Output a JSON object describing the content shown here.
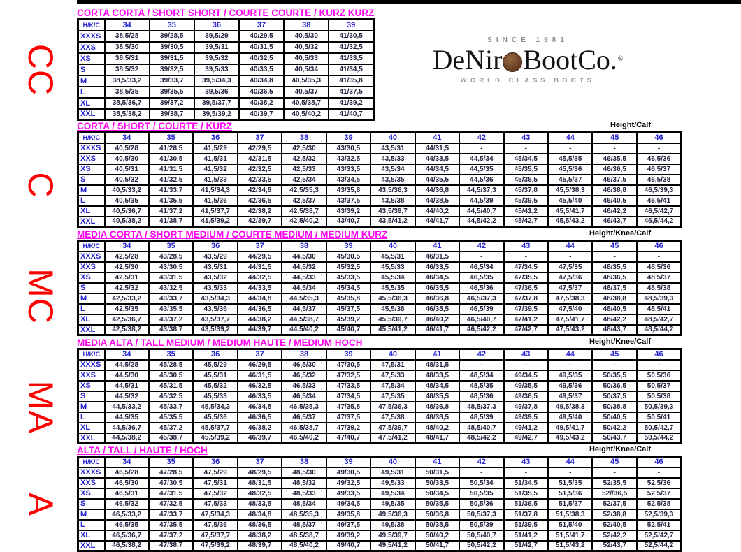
{
  "side_labels": [
    {
      "text": "CC"
    },
    {
      "text": "C"
    },
    {
      "text": "MC"
    },
    {
      "text": "MA"
    },
    {
      "text": "A"
    }
  ],
  "logo": {
    "since": "SINCE 1981",
    "name_left": "DeNir",
    "name_right": "BootCo.",
    "reg": "®",
    "tagline": "WORLD CLASS BOOTS",
    "coin_color": "#6f4426"
  },
  "colors": {
    "title_magenta": "#ff00f2",
    "header_blue": "#2323cf",
    "side_label_red": "#ff0000",
    "cell_text": "#23233f"
  },
  "tables": [
    {
      "title": "CORTA CORTA / SHORT SHORT / COURTE COURTE / KURZ KURZ",
      "note": "",
      "columns": [
        "H/K/C",
        "34",
        "35",
        "36",
        "37",
        "38",
        "39"
      ],
      "rows": [
        {
          "label": "XXXS",
          "values": [
            "38,5/28",
            "39/28,5",
            "39,5/29",
            "40/29,5",
            "40,5/30",
            "41/30,5"
          ]
        },
        {
          "label": "XXS",
          "values": [
            "38,5/30",
            "39/30,5",
            "39,5/31",
            "40/31,5",
            "40,5/32",
            "41/32,5"
          ]
        },
        {
          "label": "XS",
          "values": [
            "38,5/31",
            "39/31,5",
            "39,5/32",
            "40/32,5",
            "40,5/33",
            "41/33,5"
          ]
        },
        {
          "label": "S",
          "values": [
            "38,5/32",
            "39/32,5",
            "39,5/33",
            "40/33,5",
            "40,5/34",
            "41/34,5"
          ]
        },
        {
          "label": "M",
          "values": [
            "38,5/33,2",
            "39/33,7",
            "39,5/34,3",
            "40/34,8",
            "40,5/35,3",
            "41/35,8"
          ]
        },
        {
          "label": "L",
          "values": [
            "38,5/35",
            "39/35,5",
            "39,5/36",
            "40/36,5",
            "40,5/37",
            "41/37,5"
          ]
        },
        {
          "label": "XL",
          "values": [
            "38,5/36,7",
            "39/37,2",
            "39,5/37,7",
            "40/38,2",
            "40,5/38,7",
            "41/39,2"
          ]
        },
        {
          "label": "XXL",
          "values": [
            "38,5/38,2",
            "39/38,7",
            "39,5/39,2",
            "40/39,7",
            "40,5/40,2",
            "41/40,7"
          ]
        }
      ]
    },
    {
      "title": "CORTA / SHORT / COURTE / KURZ",
      "note": "Height/Calf",
      "columns": [
        "H/K/C",
        "34",
        "35",
        "36",
        "37",
        "38",
        "39",
        "40",
        "41",
        "42",
        "43",
        "44",
        "45",
        "46"
      ],
      "rows": [
        {
          "label": "XXXS",
          "values": [
            "40,5/28",
            "41/28,5",
            "41,5/29",
            "42/29,5",
            "42,5/30",
            "43/30,5",
            "43,5/31",
            "44/31,5",
            "-",
            "-",
            "-",
            "-",
            "-"
          ]
        },
        {
          "label": "XXS",
          "values": [
            "40,5/30",
            "41/30,5",
            "41,5/31",
            "42/31,5",
            "42,5/32",
            "43/32,5",
            "43,5/33",
            "44/33,5",
            "44,5/34",
            "45/34,5",
            "45,5/35",
            "46/35,5",
            "46,5/36"
          ]
        },
        {
          "label": "XS",
          "values": [
            "40,5/31",
            "41/31,5",
            "41,5/32",
            "42/32,5",
            "42,5/33",
            "43/33,5",
            "43,5/34",
            "44/34,5",
            "44,5/35",
            "45/35,5",
            "45,5/36",
            "46/36,5",
            "46,5/37"
          ]
        },
        {
          "label": "S",
          "values": [
            "40,5/32",
            "41/32,5",
            "41,5/33",
            "42/33,5",
            "42,5/34",
            "43/34,5",
            "43,5/35",
            "44/35,5",
            "44,5/36",
            "45/36,5",
            "45,5/37",
            "46/37,5",
            "46,5/38"
          ]
        },
        {
          "label": "M",
          "values": [
            "40,5/33,2",
            "41/33,7",
            "41,5/34,3",
            "42/34,8",
            "42,5/35,3",
            "43/35,8",
            "43,5/36,3",
            "44/36,8",
            "44,5/37,3",
            "45/37,8",
            "45,5/38,3",
            "46/38,8",
            "46,5/39,3"
          ]
        },
        {
          "label": "L",
          "values": [
            "40,5/35",
            "41/35,5",
            "41,5/36",
            "42/36,5",
            "42,5/37",
            "43/37,5",
            "43,5/38",
            "44/38,5",
            "44,5/39",
            "45/39,5",
            "45,5/40",
            "46/40,5",
            "46,5/41"
          ]
        },
        {
          "label": "XL",
          "values": [
            "40,5/36,7",
            "41/37,2",
            "41,5/37,7",
            "42/38,2",
            "42,5/38,7",
            "43/39,2",
            "43,5/39,7",
            "44/40,2",
            "44,5/40,7",
            "45/41,2",
            "45,5/41,7",
            "46/42,2",
            "46,5/42,7"
          ]
        },
        {
          "label": "XXL",
          "values": [
            "40,5/38,2",
            "41/38,7",
            "41,5/39,2",
            "42/39,7",
            "42,5/40,2",
            "43/40,7",
            "43,5/41,2",
            "44/41,7",
            "44,5/42,2",
            "45/42,7",
            "45,5/43,2",
            "46/43,7",
            "46,5/44,2"
          ]
        }
      ]
    },
    {
      "title": "MEDIA CORTA / SHORT MEDIUM / COURTE MEDIUM / MEDIUM KURZ",
      "note": "Height/Knee/Calf",
      "columns": [
        "H/K/C",
        "34",
        "35",
        "36",
        "37",
        "38",
        "39",
        "40",
        "41",
        "42",
        "43",
        "44",
        "45",
        "46"
      ],
      "rows": [
        {
          "label": "XXXS",
          "values": [
            "42,5/28",
            "43/28,5",
            "43,5/29",
            "44/29,5",
            "44,5/30",
            "45/30,5",
            "45,5/31",
            "46/31,5",
            "-",
            "-",
            "-",
            "-",
            "-"
          ]
        },
        {
          "label": "XXS",
          "values": [
            "42,5/30",
            "43/30,5",
            "43,5/31",
            "44/31,5",
            "44,5/32",
            "45/32,5",
            "45,5/33",
            "46/33,5",
            "46,5/34",
            "47/34,5",
            "47,5/35",
            "48/35,5",
            "48,5/36"
          ]
        },
        {
          "label": "XS",
          "values": [
            "42,5/31",
            "43/31,5",
            "43,5/32",
            "44/32,5",
            "44,5/33",
            "45/33,5",
            "45,5/34",
            "46/34,5",
            "46,5/35",
            "47/35,5",
            "47,5/36",
            "48/36,5",
            "48,5/37"
          ]
        },
        {
          "label": "S",
          "values": [
            "42,5/32",
            "43/32,5",
            "43,5/33",
            "44/33,5",
            "44,5/34",
            "45/34,5",
            "45,5/35",
            "46/35,5",
            "46,5/36",
            "47/36,5",
            "47,5/37",
            "48/37,5",
            "48,5/38"
          ]
        },
        {
          "label": "M",
          "values": [
            "42,5/33,2",
            "43/33,7",
            "43,5/34,3",
            "44/34,8",
            "44,5/35,3",
            "45/35,8",
            "45,5/36,3",
            "46/36,8",
            "46,5/37,3",
            "47/37,8",
            "47,5/38,3",
            "48/38,8",
            "48,5/39,3"
          ]
        },
        {
          "label": "L",
          "values": [
            "42,5/35",
            "43/35,5",
            "43,5/36",
            "44/36,5",
            "44,5/37",
            "45/37,5",
            "45,5/38",
            "46/38,5",
            "46,5/39",
            "47/39,5",
            "47,5/40",
            "48/40,5",
            "48,5/41"
          ]
        },
        {
          "label": "XL",
          "values": [
            "42,5/36,7",
            "43/37,2",
            "43,5/37,7",
            "44/38,2",
            "44,5/38,7",
            "45/39,2",
            "45,5/39,7",
            "46/40,2",
            "46,5/40,7",
            "47/41,2",
            "47,5/41,7",
            "48/42,2",
            "48,5/42,7"
          ]
        },
        {
          "label": "XXL",
          "values": [
            "42,5/38,2",
            "43/38,7",
            "43,5/39,2",
            "44/39,7",
            "44,5/40,2",
            "45/40,7",
            "45,5/41,2",
            "46/41,7",
            "46,5/42,2",
            "47/42,7",
            "47,5/43,2",
            "48/43,7",
            "48,5/44,2"
          ]
        }
      ]
    },
    {
      "title": "MEDIA ALTA / TALL MEDIUM / MEDIUM HAUTE / MEDIUM HOCH",
      "note": "Height/Knee/Calf",
      "columns": [
        "H/K/C",
        "34",
        "35",
        "36",
        "37",
        "38",
        "39",
        "40",
        "41",
        "42",
        "43",
        "44",
        "45",
        "46"
      ],
      "rows": [
        {
          "label": "XXXS",
          "values": [
            "44,5/28",
            "45/28,5",
            "45,5/29",
            "46/29,5",
            "46,5/30",
            "47/30,5",
            "47,5/31",
            "48/31,5",
            "-",
            "-",
            "-",
            "-",
            "-"
          ]
        },
        {
          "label": "XXS",
          "values": [
            "44,5/30",
            "45/30,5",
            "45,5/31",
            "46/31,5",
            "46,5/32",
            "47/32,5",
            "47,5/33",
            "48/33,5",
            "48,5/34",
            "49/34,5",
            "49,5/35",
            "50/35,5",
            "50,5/36"
          ]
        },
        {
          "label": "XS",
          "values": [
            "44,5/31",
            "45/31,5",
            "45,5/32",
            "46/32,5",
            "46,5/33",
            "47/33,5",
            "47,5/34",
            "48/34,5",
            "48,5/35",
            "49/35,5",
            "49,5/36",
            "50/36,5",
            "50,5/37"
          ]
        },
        {
          "label": "S",
          "values": [
            "44,5/32",
            "45/32,5",
            "45,5/33",
            "46/33,5",
            "46,5/34",
            "47/34,5",
            "47,5/35",
            "48/35,5",
            "48,5/36",
            "49/36,5",
            "49,5/37",
            "50/37,5",
            "50,5/38"
          ]
        },
        {
          "label": "M",
          "values": [
            "44,5/33,2",
            "45/33,7",
            "45,5/34,3",
            "46/34,8",
            "46,5/35,3",
            "47/35,8",
            "47,5/36,3",
            "48/36,8",
            "48,5/37,3",
            "49/37,8",
            "49,5/38,3",
            "50/38,8",
            "50,5/39,3"
          ]
        },
        {
          "label": "L",
          "values": [
            "44,5/35",
            "45/35,5",
            "45,5/36",
            "46/36,5",
            "46,5/37",
            "47/37,5",
            "47,5/38",
            "48/38,5",
            "48,5/39",
            "49/39,5",
            "49,5/40",
            "50/40,5",
            "50,5/41"
          ]
        },
        {
          "label": "XL",
          "values": [
            "44,5/36,7",
            "45/37,2",
            "45,5/37,7",
            "46/38,2",
            "46,5/38,7",
            "47/39,2",
            "47,5/39,7",
            "48/40,2",
            "48,5/40,7",
            "49/41,2",
            "49,5/41,7",
            "50/42,2",
            "50,5/42,7"
          ]
        },
        {
          "label": "XXL",
          "values": [
            "44,5/38,2",
            "45/38,7",
            "45,5/39,2",
            "46/39,7",
            "46,5/40,2",
            "47/40,7",
            "47,5/41,2",
            "48/41,7",
            "48,5/42,2",
            "49/42,7",
            "49,5/43,2",
            "50/43,7",
            "50,5/44,2"
          ]
        }
      ]
    },
    {
      "title": "ALTA / TALL / HAUTE / HOCH",
      "note": "Height/Knee/Calf",
      "columns": [
        "H/K/C",
        "34",
        "35",
        "36",
        "37",
        "38",
        "39",
        "40",
        "41",
        "42",
        "43",
        "44",
        "45",
        "46"
      ],
      "rows": [
        {
          "label": "XXXS",
          "values": [
            "46,5/28",
            "47/28,5",
            "47,5/29",
            "48/29,5",
            "48,5/30",
            "49/30,5",
            "49,5/31",
            "50/31,5",
            "-",
            "-",
            "-",
            "-",
            "-"
          ]
        },
        {
          "label": "XXS",
          "values": [
            "46,5/30",
            "47/30,5",
            "47,5/31",
            "48/31,5",
            "48,5/32",
            "49/32,5",
            "49,5/33",
            "50/33,5",
            "50,5/34",
            "51/34,5",
            "51,5/35",
            "52/35,5",
            "52,5/36"
          ]
        },
        {
          "label": "XS",
          "values": [
            "46,5/31",
            "47/31,5",
            "47,5/32",
            "48/32,5",
            "48,5/33",
            "49/33,5",
            "49,5/34",
            "50/34,5",
            "50,5/35",
            "51/35,5",
            "51,5/36",
            "52//36,5",
            "52,5/37"
          ]
        },
        {
          "label": "S",
          "values": [
            "46,5/32",
            "47/32,5",
            "47,5/33",
            "48/33,5",
            "48,5/34",
            "49/34,5",
            "49,5/35",
            "50/35,5",
            "50,5/36",
            "51/36,5",
            "51,5/37",
            "52/37,5",
            "52,5/38"
          ]
        },
        {
          "label": "M",
          "values": [
            "46,5/33,2",
            "47/33,7",
            "47,5/34,3",
            "48/34,8",
            "48,5/35,3",
            "49/35,8",
            "49,5/36,3",
            "50/36,8",
            "50,5/37,3",
            "51/37,8",
            "51,5/38,3",
            "52/38,8",
            "52,5/39,3"
          ]
        },
        {
          "label": "L",
          "values": [
            "46,5/35",
            "47/35,5",
            "47,5/36",
            "48/36,5",
            "48,5/37",
            "49/37,5",
            "49,5/38",
            "50/38,5",
            "50,5/39",
            "51/39,5",
            "51,5/40",
            "52/40,5",
            "52,5/41"
          ]
        },
        {
          "label": "XL",
          "values": [
            "46,5/36,7",
            "47/37,2",
            "47,5/37,7",
            "48/38,2",
            "48,5/38,7",
            "49/39,2",
            "49,5/39,7",
            "50/40,2",
            "50,5/40,7",
            "51/41,2",
            "51,5/41,7",
            "52/42,2",
            "52,5/42,7"
          ]
        },
        {
          "label": "XXL",
          "values": [
            "46,5/38,2",
            "47/38,7",
            "47,5/39,2",
            "48/39,7",
            "48,5/40,2",
            "49/40,7",
            "49,5/41,2",
            "50/41,7",
            "50,5/42,2",
            "51/42,7",
            "51,5/43,2",
            "52/43,7",
            "52,5/44,2"
          ]
        }
      ]
    }
  ]
}
